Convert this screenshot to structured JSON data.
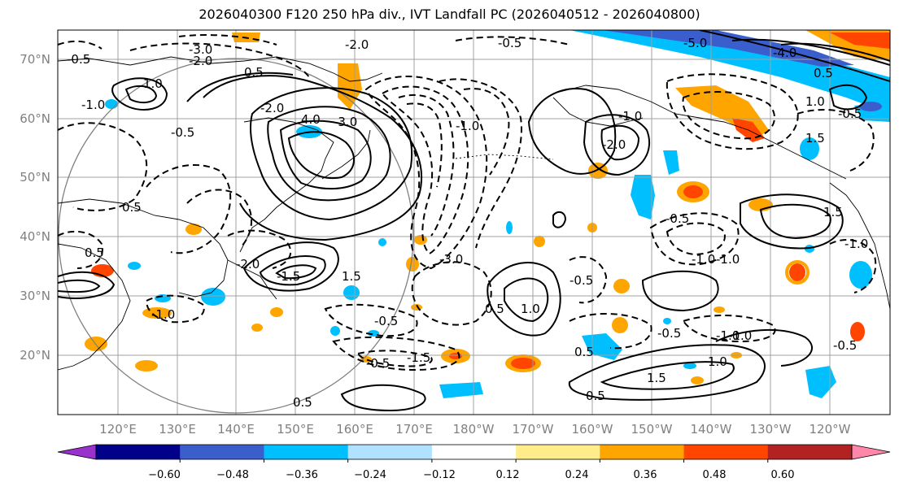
{
  "title": "2026040300 F120 250 hPa div., IVT Landfall PC (2026040512 - 2026040800)",
  "latitude_labels": [
    "70°N",
    "60°N",
    "50°N",
    "40°N",
    "30°N",
    "20°N"
  ],
  "longitude_labels": [
    "120°E",
    "130°E",
    "140°E",
    "150°E",
    "160°E",
    "170°E",
    "180°W",
    "170°W",
    "160°W",
    "150°W",
    "140°W",
    "130°W",
    "120°W"
  ],
  "colorbar": {
    "ticks": [
      "−0.60",
      "−0.48",
      "−0.36",
      "−0.24",
      "−0.12",
      "0.12",
      "0.24",
      "0.36",
      "0.48",
      "0.60"
    ],
    "colors": [
      "#9932cc",
      "#00008b",
      "#3a5fcd",
      "#00bfff",
      "#b0e2ff",
      "#ffffff",
      "#ffec8b",
      "#ffa500",
      "#ff4500",
      "#b22222",
      "#ff88aa"
    ]
  },
  "contour_labels": [
    "-0.5",
    "-2.0",
    "-3.0",
    "-2.0",
    "0.5",
    "-1.0",
    "-0.5",
    "-3.0",
    "-5.0",
    "-4.0",
    "0.5",
    "1.0",
    "-2.0",
    "-1.0",
    "4.0",
    "-2.0",
    "-1.0",
    "-0.5",
    "0.5",
    "1.0",
    "1.5",
    "-0.5",
    "-1.0",
    "-1.5",
    "0.5",
    "-1.0",
    "-0.5",
    "-1.0",
    "0.5",
    "1.5",
    "-1.5",
    "-2.0",
    "-3.0",
    "1.0",
    "0.5",
    "-0.5",
    "-1.0",
    "1.5",
    "-1.0",
    "-0.5",
    "0.5",
    "-0.5",
    "-0.5",
    "1.0",
    "-1.0",
    "-0.5",
    "1.5",
    "0.5"
  ]
}
